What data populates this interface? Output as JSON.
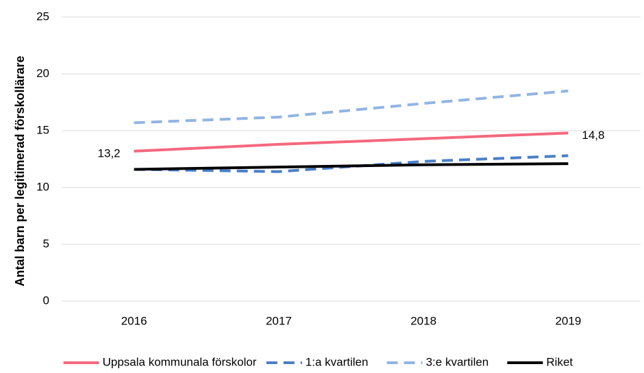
{
  "chart_data": {
    "type": "line",
    "y_label": "Antal barn per legitimerad förskollärare",
    "categories": [
      "2016",
      "2017",
      "2018",
      "2019"
    ],
    "series": [
      {
        "name": "Uppsala kommunala förskolor",
        "color": "#f4687e",
        "dash": false,
        "values": [
          13.2,
          13.8,
          14.3,
          14.8
        ],
        "value_labels": [
          "13,2",
          null,
          null,
          "14,8"
        ]
      },
      {
        "name": "1:a kvartilen",
        "color": "#4a7fc9",
        "dash": true,
        "values": [
          11.6,
          11.4,
          12.3,
          12.8
        ]
      },
      {
        "name": "3:e kvartilen",
        "color": "#92b4e3",
        "dash": true,
        "values": [
          15.7,
          16.2,
          17.4,
          18.5
        ]
      },
      {
        "name": "Riket",
        "color": "#000000",
        "dash": false,
        "values": [
          11.6,
          11.8,
          12.0,
          12.1
        ]
      }
    ],
    "ylim": [
      0,
      25
    ],
    "yticks": [
      0,
      5,
      10,
      15,
      20,
      25
    ],
    "grid": true,
    "legend": "bottom"
  }
}
